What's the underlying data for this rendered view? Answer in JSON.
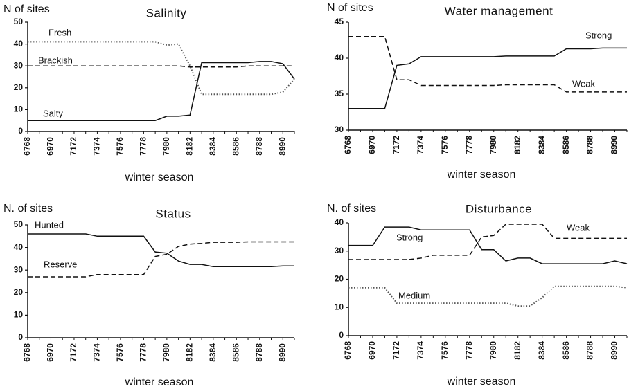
{
  "chart_data": [
    {
      "type": "line",
      "title": "Salinity",
      "ylabel": "N of sites",
      "xlabel": "winter season",
      "categories": [
        "6768",
        null,
        "6970",
        null,
        "7172",
        null,
        "7374",
        null,
        "7576",
        null,
        "7778",
        null,
        "7980",
        null,
        "8182",
        null,
        "8384",
        null,
        "8586",
        null,
        "8788",
        null,
        "8990",
        null
      ],
      "ylim": [
        0,
        50
      ],
      "yticks": [
        0,
        10,
        20,
        30,
        40,
        50
      ],
      "series": [
        {
          "name": "Fresh",
          "color": "#555555",
          "style": "dotted",
          "values": [
            41,
            41,
            41,
            41,
            41,
            41,
            41,
            41,
            41,
            41,
            41,
            41,
            39.5,
            40,
            30,
            17,
            17,
            17,
            17,
            17,
            17,
            17,
            18,
            24
          ]
        },
        {
          "name": "Brackish",
          "color": "#111111",
          "style": "dashed",
          "values": [
            30,
            30,
            30,
            30,
            30,
            30,
            30,
            30,
            30,
            30,
            30,
            30,
            30,
            30,
            29.5,
            29.5,
            29.5,
            29.5,
            29.5,
            30,
            30,
            30,
            30,
            30
          ]
        },
        {
          "name": "Salty",
          "color": "#111111",
          "style": "solid",
          "values": [
            5,
            5,
            5,
            5,
            5,
            5,
            5,
            5,
            5,
            5,
            5,
            5,
            7,
            7,
            7.5,
            31.5,
            31.5,
            31.5,
            31.5,
            31.5,
            32,
            32,
            31,
            24
          ]
        }
      ]
    },
    {
      "type": "line",
      "title": "Water management",
      "ylabel": "N of sites",
      "xlabel": "winter season",
      "categories": [
        "6768",
        null,
        "6970",
        null,
        "7172",
        null,
        "7374",
        null,
        "7576",
        null,
        "7778",
        null,
        "7980",
        null,
        "8182",
        null,
        "8384",
        null,
        "8586",
        null,
        "8788",
        null,
        "8990",
        null
      ],
      "ylim": [
        30,
        45
      ],
      "yticks": [
        30,
        35,
        40,
        45
      ],
      "series": [
        {
          "name": "Strong",
          "color": "#111111",
          "style": "solid",
          "values": [
            33,
            33,
            33,
            33,
            39,
            39.2,
            40.2,
            40.2,
            40.2,
            40.2,
            40.2,
            40.2,
            40.2,
            40.3,
            40.3,
            40.3,
            40.3,
            40.3,
            41.3,
            41.3,
            41.3,
            41.4,
            41.4,
            41.4
          ]
        },
        {
          "name": "Weak",
          "color": "#111111",
          "style": "dashed",
          "values": [
            43,
            43,
            43,
            43,
            37,
            37,
            36.2,
            36.2,
            36.2,
            36.2,
            36.2,
            36.2,
            36.2,
            36.3,
            36.3,
            36.3,
            36.3,
            36.3,
            35.3,
            35.3,
            35.3,
            35.3,
            35.3,
            35.3
          ]
        }
      ]
    },
    {
      "type": "line",
      "title": "Status",
      "ylabel": "N. of sites",
      "xlabel": "winter season",
      "categories": [
        "6768",
        null,
        "6970",
        null,
        "7172",
        null,
        "7374",
        null,
        "7576",
        null,
        "7778",
        null,
        "7980",
        null,
        "8182",
        null,
        "8384",
        null,
        "8586",
        null,
        "8788",
        null,
        "8990",
        null
      ],
      "ylim": [
        0,
        50
      ],
      "yticks": [
        0,
        10,
        20,
        30,
        40,
        50
      ],
      "series": [
        {
          "name": "Hunted",
          "color": "#111111",
          "style": "solid",
          "values": [
            46,
            46,
            46,
            46,
            46,
            46,
            45,
            45,
            45,
            45,
            45,
            38,
            37.5,
            34,
            32.5,
            32.5,
            31.5,
            31.5,
            31.5,
            31.5,
            31.5,
            31.5,
            31.8,
            31.8
          ]
        },
        {
          "name": "Reserve",
          "color": "#111111",
          "style": "dashed",
          "values": [
            27,
            27,
            27,
            27,
            27,
            27,
            28,
            28,
            28,
            28,
            28,
            36,
            37,
            40.5,
            41.5,
            41.8,
            42.3,
            42.3,
            42.3,
            42.5,
            42.5,
            42.5,
            42.5,
            42.5
          ]
        }
      ]
    },
    {
      "type": "line",
      "title": "Disturbance",
      "ylabel": "N. of sites",
      "xlabel": "winter season",
      "categories": [
        "6768",
        null,
        "6970",
        null,
        "7172",
        null,
        "7374",
        null,
        "7576",
        null,
        "7778",
        null,
        "7980",
        null,
        "8182",
        null,
        "8384",
        null,
        "8586",
        null,
        "8788",
        null,
        "8990",
        null
      ],
      "ylim": [
        0,
        40
      ],
      "yticks": [
        0,
        10,
        20,
        30,
        40
      ],
      "series": [
        {
          "name": "Strong",
          "color": "#111111",
          "style": "solid",
          "values": [
            32,
            32,
            32,
            38.5,
            38.5,
            38.5,
            37.5,
            37.5,
            37.5,
            37.5,
            37.5,
            30.5,
            30.5,
            26.5,
            27.5,
            27.5,
            25.5,
            25.5,
            25.5,
            25.5,
            25.5,
            25.5,
            26.5,
            25.5
          ]
        },
        {
          "name": "Weak",
          "color": "#111111",
          "style": "dashed",
          "values": [
            27,
            27,
            27,
            27,
            27,
            27,
            27.5,
            28.5,
            28.5,
            28.5,
            28.5,
            35,
            35.5,
            39.5,
            39.5,
            39.5,
            39.5,
            34.5,
            34.5,
            34.5,
            34.5,
            34.5,
            34.5,
            34.5
          ]
        },
        {
          "name": "Medium",
          "color": "#555555",
          "style": "dotted",
          "values": [
            17,
            17,
            17,
            17,
            11.5,
            11.5,
            11.5,
            11.5,
            11.5,
            11.5,
            11.5,
            11.5,
            11.5,
            11.5,
            10.5,
            10.5,
            13.5,
            17.5,
            17.5,
            17.5,
            17.5,
            17.5,
            17.5,
            17
          ]
        }
      ]
    }
  ]
}
